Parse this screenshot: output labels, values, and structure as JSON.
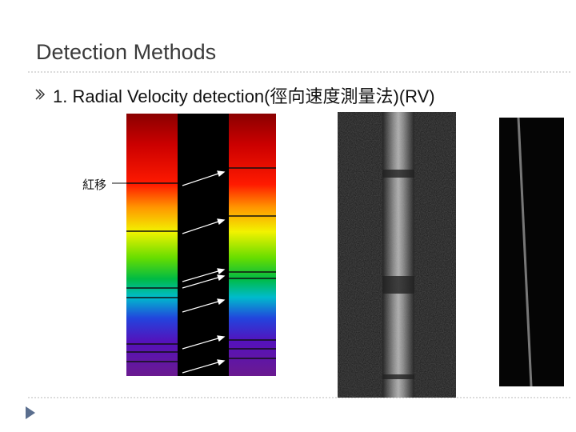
{
  "title": "Detection Methods",
  "bullets": [
    {
      "text": "1. Radial Velocity detection(徑向速度測量法)(RV)"
    }
  ],
  "figure": {
    "label": "紅移"
  }
}
